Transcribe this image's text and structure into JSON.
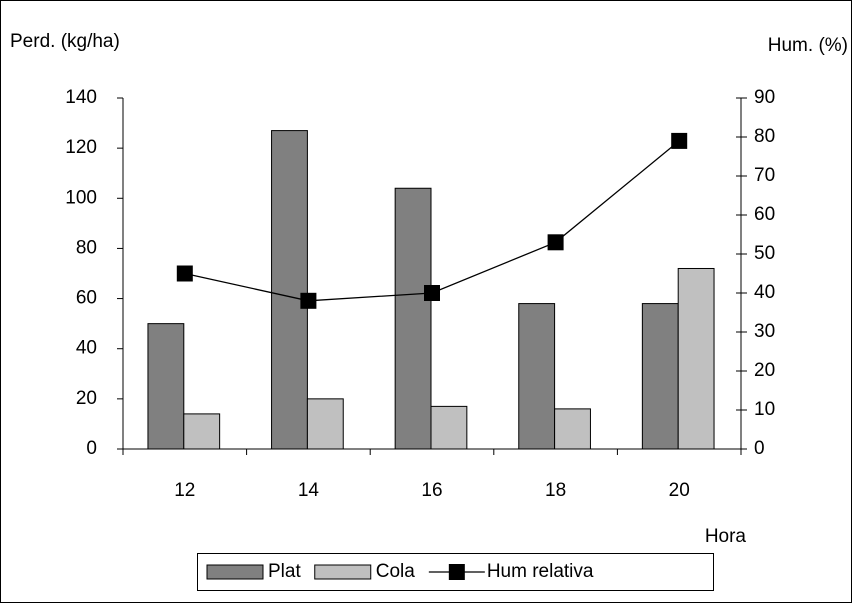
{
  "chart_data": {
    "type": "bar",
    "y_label": "Perd. (kg/ha)",
    "y2_label": "Hum. (%)",
    "x_label": "Hora",
    "categories": [
      "12",
      "14",
      "16",
      "18",
      "20"
    ],
    "series": [
      {
        "name": "Plat",
        "color": "#808080",
        "type": "bar",
        "values": [
          50,
          127,
          104,
          58,
          58
        ]
      },
      {
        "name": "Cola",
        "color": "#c0c0c0",
        "type": "bar",
        "values": [
          14,
          20,
          17,
          16,
          72
        ]
      },
      {
        "name": "Hum relativa",
        "color": "#000000",
        "type": "line",
        "axis": "y2",
        "values": [
          45,
          38,
          40,
          53,
          79
        ]
      }
    ],
    "ylim": [
      0,
      140
    ],
    "yticks": [
      0,
      20,
      40,
      60,
      80,
      100,
      120,
      140
    ],
    "y2lim": [
      0,
      90
    ],
    "y2ticks": [
      0,
      10,
      20,
      30,
      40,
      50,
      60,
      70,
      80,
      90
    ],
    "grid": false,
    "legend": "bottom"
  }
}
